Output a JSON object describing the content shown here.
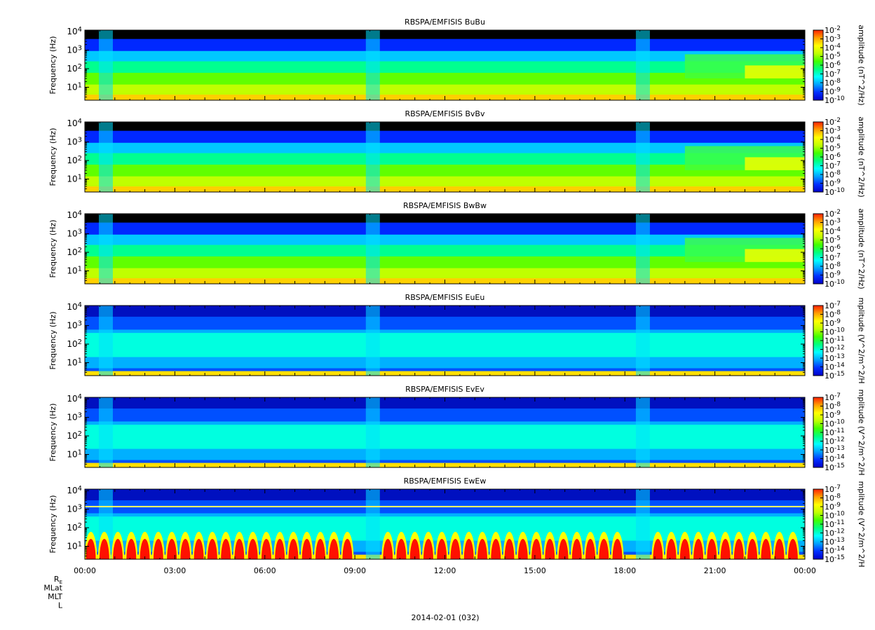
{
  "chart_data": {
    "type": "heatmap",
    "figure": {
      "date_label": "2014-02-01 (032)",
      "ephemeris_labels": [
        "R",
        "MLat",
        "MLT",
        "L"
      ],
      "ephemeris_subscript": "E"
    },
    "time_axis": {
      "range_hours": [
        0,
        24
      ],
      "tick_labels": [
        "00:00",
        "03:00",
        "06:00",
        "09:00",
        "12:00",
        "15:00",
        "18:00",
        "21:00",
        "00:00"
      ],
      "tick_hours": [
        0,
        3,
        6,
        9,
        12,
        15,
        18,
        21,
        24
      ]
    },
    "panels": [
      {
        "title": "RBSPA/EMFISIS  BuBu",
        "ylabel": "Frequency (Hz)",
        "yscale": "log",
        "ylim_hz": [
          2,
          12000
        ],
        "y_ticks": [
          {
            "base": "10",
            "exp": "1"
          },
          {
            "base": "10",
            "exp": "2"
          },
          {
            "base": "10",
            "exp": "3"
          },
          {
            "base": "10",
            "exp": "4"
          }
        ],
        "colorbar_label": "amplitude (nT^2/Hz)",
        "colorbar_ticks": [
          {
            "base": "10",
            "exp": "-2"
          },
          {
            "base": "10",
            "exp": "-3"
          },
          {
            "base": "10",
            "exp": "-4"
          },
          {
            "base": "10",
            "exp": "-5"
          },
          {
            "base": "10",
            "exp": "-6"
          },
          {
            "base": "10",
            "exp": "-7"
          },
          {
            "base": "10",
            "exp": "-8"
          },
          {
            "base": "10",
            "exp": "-9"
          },
          {
            "base": "10",
            "exp": "-10"
          }
        ],
        "zlim_exp": [
          -10,
          -2
        ]
      },
      {
        "title": "RBSPA/EMFISIS  BvBv",
        "ylabel": "Frequency (Hz)",
        "yscale": "log",
        "ylim_hz": [
          2,
          12000
        ],
        "y_ticks": [
          {
            "base": "10",
            "exp": "1"
          },
          {
            "base": "10",
            "exp": "2"
          },
          {
            "base": "10",
            "exp": "3"
          },
          {
            "base": "10",
            "exp": "4"
          }
        ],
        "colorbar_label": "amplitude (nT^2/Hz)",
        "colorbar_ticks": [
          {
            "base": "10",
            "exp": "-2"
          },
          {
            "base": "10",
            "exp": "-3"
          },
          {
            "base": "10",
            "exp": "-4"
          },
          {
            "base": "10",
            "exp": "-5"
          },
          {
            "base": "10",
            "exp": "-6"
          },
          {
            "base": "10",
            "exp": "-7"
          },
          {
            "base": "10",
            "exp": "-8"
          },
          {
            "base": "10",
            "exp": "-9"
          },
          {
            "base": "10",
            "exp": "-10"
          }
        ],
        "zlim_exp": [
          -10,
          -2
        ]
      },
      {
        "title": "RBSPA/EMFISIS  BwBw",
        "ylabel": "Frequency (Hz)",
        "yscale": "log",
        "ylim_hz": [
          2,
          12000
        ],
        "y_ticks": [
          {
            "base": "10",
            "exp": "1"
          },
          {
            "base": "10",
            "exp": "2"
          },
          {
            "base": "10",
            "exp": "3"
          },
          {
            "base": "10",
            "exp": "4"
          }
        ],
        "colorbar_label": "amplitude (nT^2/Hz)",
        "colorbar_ticks": [
          {
            "base": "10",
            "exp": "-2"
          },
          {
            "base": "10",
            "exp": "-3"
          },
          {
            "base": "10",
            "exp": "-4"
          },
          {
            "base": "10",
            "exp": "-5"
          },
          {
            "base": "10",
            "exp": "-6"
          },
          {
            "base": "10",
            "exp": "-7"
          },
          {
            "base": "10",
            "exp": "-8"
          },
          {
            "base": "10",
            "exp": "-9"
          },
          {
            "base": "10",
            "exp": "-10"
          }
        ],
        "zlim_exp": [
          -10,
          -2
        ]
      },
      {
        "title": "RBSPA/EMFISIS  EuEu",
        "ylabel": "Frequency (Hz)",
        "yscale": "log",
        "ylim_hz": [
          2,
          12000
        ],
        "y_ticks": [
          {
            "base": "10",
            "exp": "1"
          },
          {
            "base": "10",
            "exp": "2"
          },
          {
            "base": "10",
            "exp": "3"
          },
          {
            "base": "10",
            "exp": "4"
          }
        ],
        "colorbar_label": "mplitude (V^2/m^2/H",
        "colorbar_ticks": [
          {
            "base": "10",
            "exp": "-7"
          },
          {
            "base": "10",
            "exp": "-8"
          },
          {
            "base": "10",
            "exp": "-9"
          },
          {
            "base": "10",
            "exp": "-10"
          },
          {
            "base": "10",
            "exp": "-11"
          },
          {
            "base": "10",
            "exp": "-12"
          },
          {
            "base": "10",
            "exp": "-13"
          },
          {
            "base": "10",
            "exp": "-14"
          },
          {
            "base": "10",
            "exp": "-15"
          }
        ],
        "zlim_exp": [
          -15,
          -7
        ]
      },
      {
        "title": "RBSPA/EMFISIS  EvEv",
        "ylabel": "Frequency (Hz)",
        "yscale": "log",
        "ylim_hz": [
          2,
          12000
        ],
        "y_ticks": [
          {
            "base": "10",
            "exp": "1"
          },
          {
            "base": "10",
            "exp": "2"
          },
          {
            "base": "10",
            "exp": "3"
          },
          {
            "base": "10",
            "exp": "4"
          }
        ],
        "colorbar_label": "mplitude (V^2/m^2/H",
        "colorbar_ticks": [
          {
            "base": "10",
            "exp": "-7"
          },
          {
            "base": "10",
            "exp": "-8"
          },
          {
            "base": "10",
            "exp": "-9"
          },
          {
            "base": "10",
            "exp": "-10"
          },
          {
            "base": "10",
            "exp": "-11"
          },
          {
            "base": "10",
            "exp": "-12"
          },
          {
            "base": "10",
            "exp": "-13"
          },
          {
            "base": "10",
            "exp": "-14"
          },
          {
            "base": "10",
            "exp": "-15"
          }
        ],
        "zlim_exp": [
          -15,
          -7
        ]
      },
      {
        "title": "RBSPA/EMFISIS  EwEw",
        "ylabel": "Frequency (Hz)",
        "yscale": "log",
        "ylim_hz": [
          2,
          12000
        ],
        "y_ticks": [
          {
            "base": "10",
            "exp": "1"
          },
          {
            "base": "10",
            "exp": "2"
          },
          {
            "base": "10",
            "exp": "3"
          },
          {
            "base": "10",
            "exp": "4"
          }
        ],
        "colorbar_label": "mplitude (V^2/m^2/H",
        "colorbar_ticks": [
          {
            "base": "10",
            "exp": "-7"
          },
          {
            "base": "10",
            "exp": "-8"
          },
          {
            "base": "10",
            "exp": "-9"
          },
          {
            "base": "10",
            "exp": "-10"
          },
          {
            "base": "10",
            "exp": "-11"
          },
          {
            "base": "10",
            "exp": "-12"
          },
          {
            "base": "10",
            "exp": "-13"
          },
          {
            "base": "10",
            "exp": "-14"
          },
          {
            "base": "10",
            "exp": "-15"
          }
        ],
        "zlim_exp": [
          -15,
          -7
        ]
      }
    ],
    "colormap": [
      "#0000c8",
      "#0030ff",
      "#00a0ff",
      "#00ffff",
      "#00ff80",
      "#40ff00",
      "#c0ff00",
      "#ffff00",
      "#ffa000",
      "#ff2000"
    ],
    "background_color": "#000000",
    "grid": false
  }
}
